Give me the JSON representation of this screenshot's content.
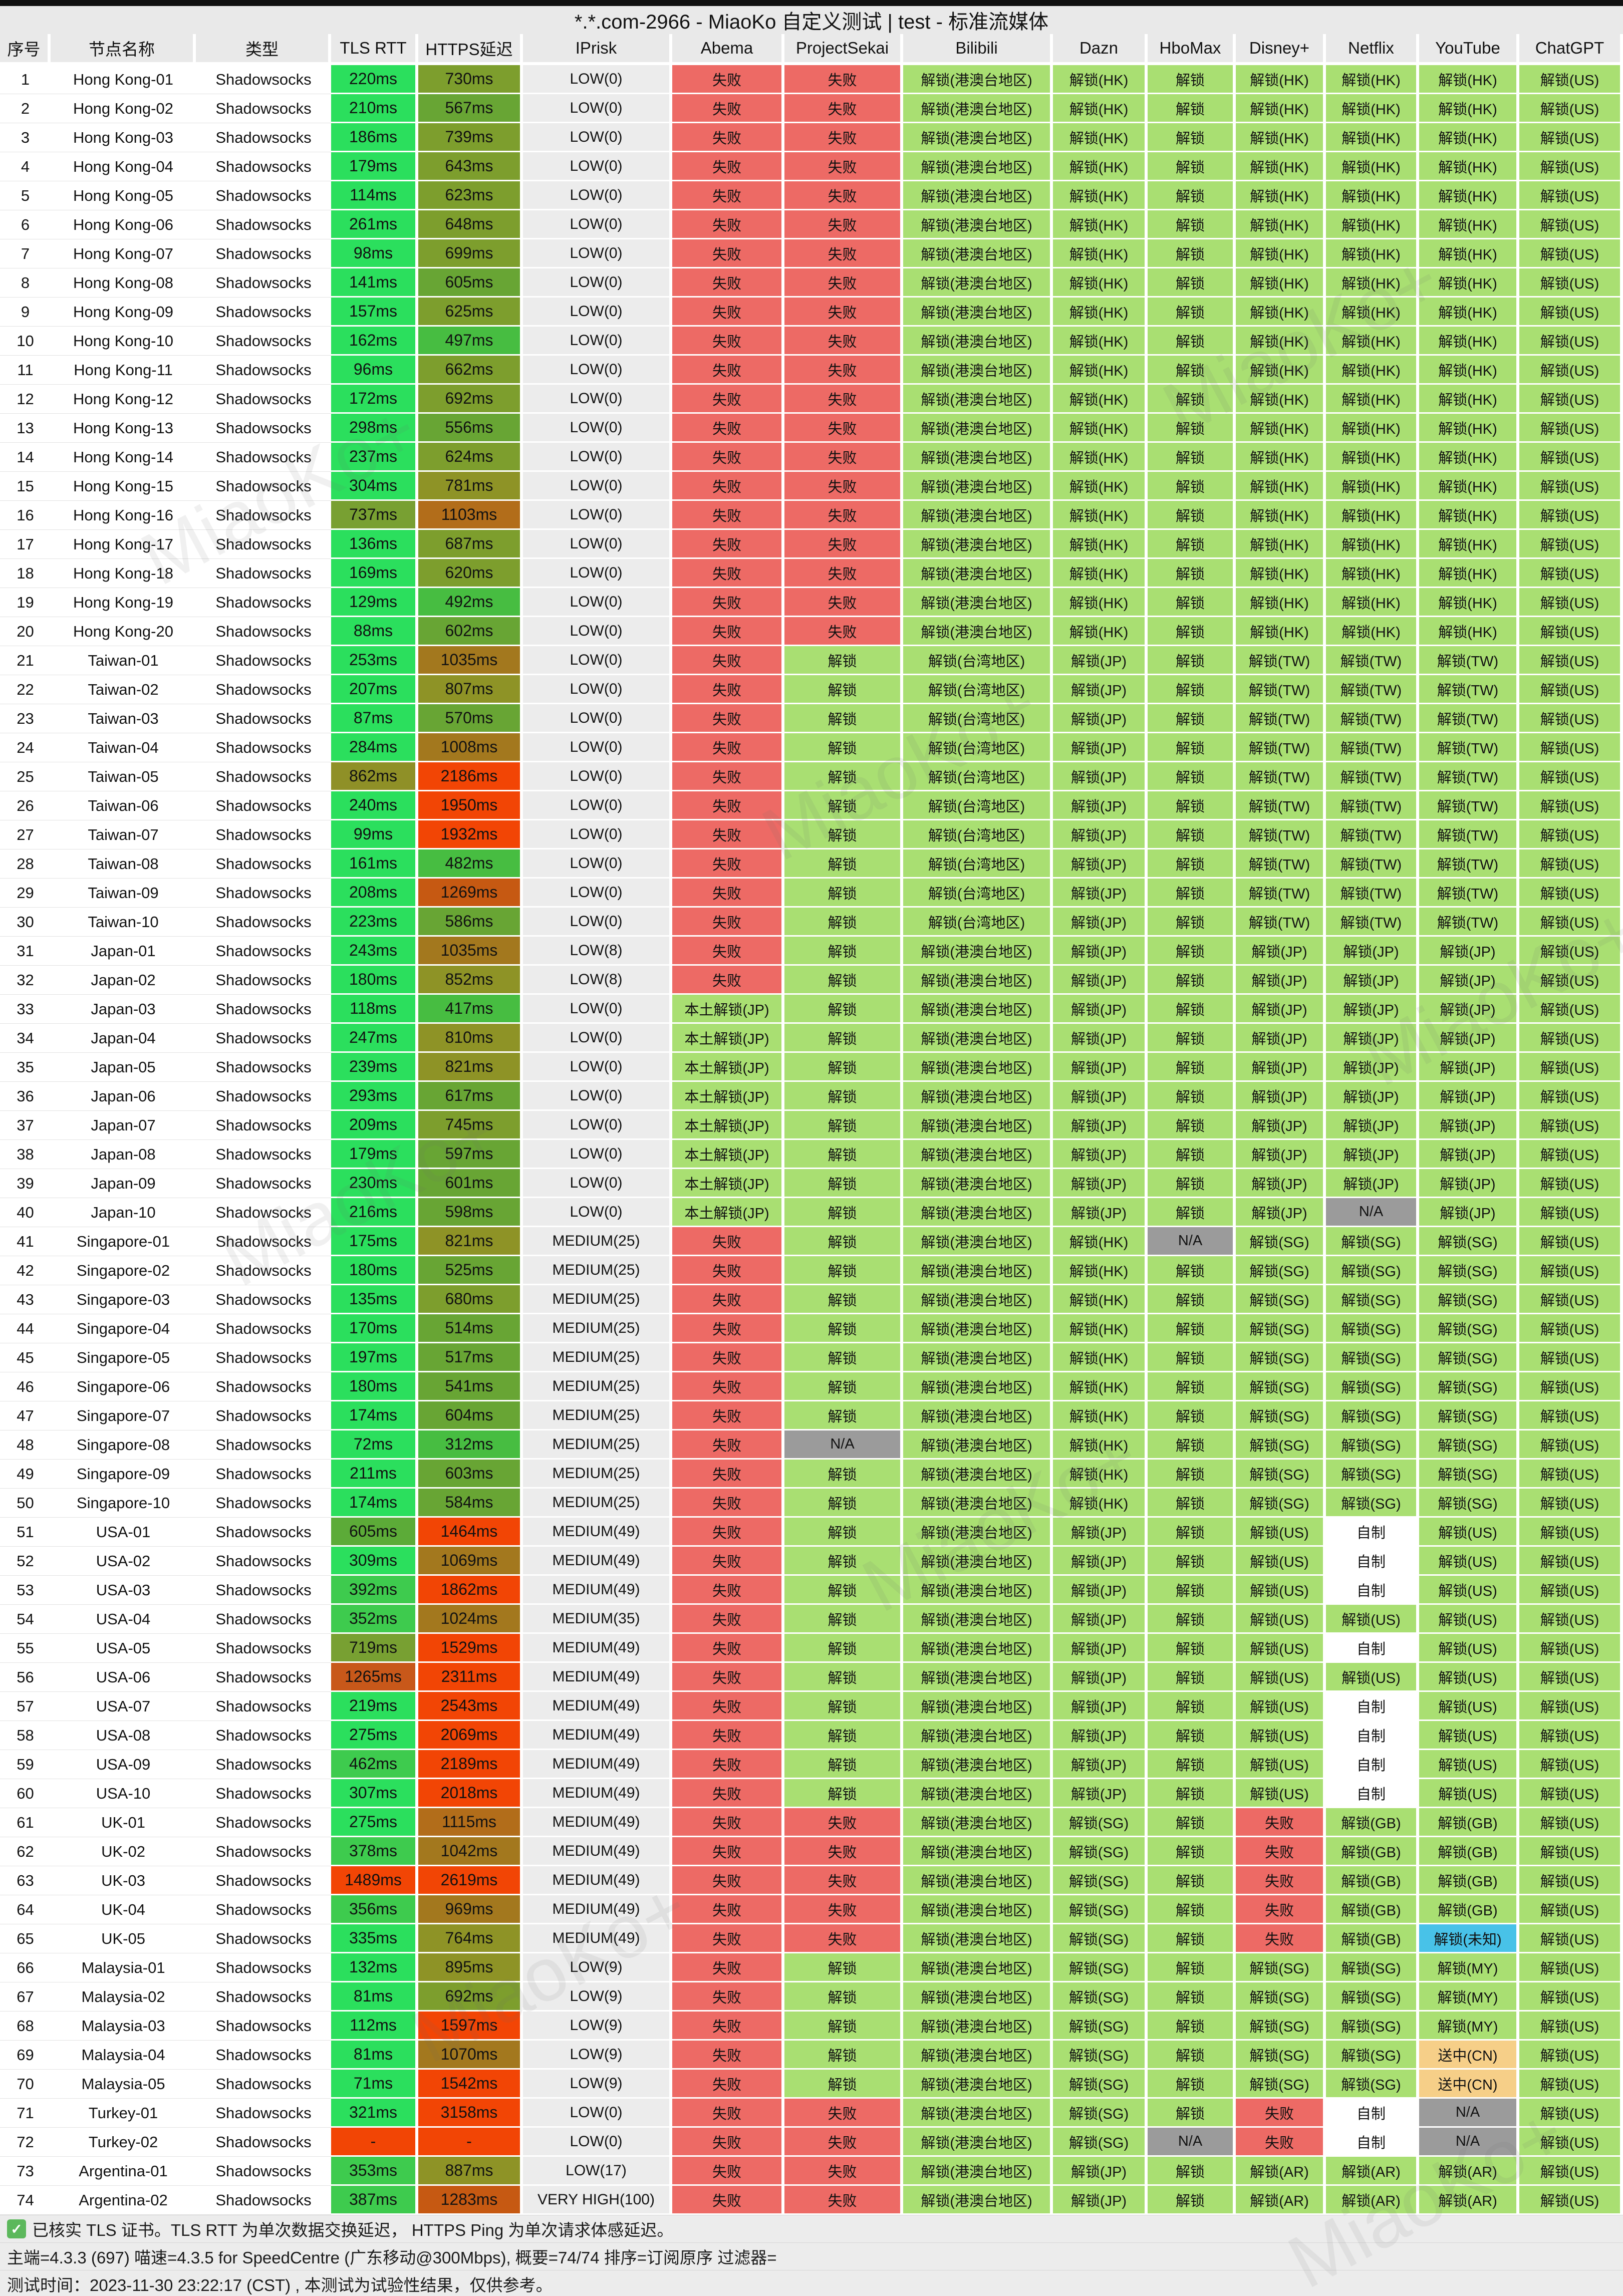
{
  "title": "*.*.com-2966 - MiaoKo 自定义测试 | test - 标准流媒体",
  "watermark": "MiaoKo+",
  "columns": [
    "序号",
    "节点名称",
    "类型",
    "TLS RTT",
    "HTTPS延迟",
    "IPrisk",
    "Abema",
    "ProjectSekai",
    "Bilibili",
    "Dazn",
    "HboMax",
    "Disney+",
    "Netflix",
    "YouTube",
    "ChatGPT"
  ],
  "footer": {
    "check_note": "已核实 TLS 证书。TLS RTT 为单次数据交换延迟， HTTPS Ping 为单次请求体感延迟。",
    "meta": "主端=4.3.3 (697) 喵速=4.3.5 for SpeedCentre (广东移动@300Mbps), 概要=74/74 排序=订阅原序 过滤器=",
    "time": "测试时间：2023-11-30 23:22:17 (CST) , 本测试为试验性结果，仅供参考。"
  },
  "palette": {
    "fail_red": "#ed6a65",
    "unlock_green": "#a9df72",
    "na_gray": "#9b9b9b",
    "originals_white": "#ffffff",
    "unknown_blue": "#48c2e8",
    "cn_redirect_tan": "#f6cf88",
    "tls_fast_green": "#2bdf5d",
    "latency_olive": "#7d9e2d",
    "latency_gold": "#a3781e",
    "latency_red": "#f24505",
    "header_gray": "#e9e9e9",
    "iprisk_gray": "#ececec"
  },
  "patterns": {
    "HK": [
      [
        "失败",
        "f"
      ],
      [
        "失败",
        "f"
      ],
      [
        "解锁(港澳台地区)",
        "u"
      ],
      [
        "解锁(HK)",
        "u"
      ],
      [
        "解锁",
        "u"
      ],
      [
        "解锁(HK)",
        "u"
      ],
      [
        "解锁(HK)",
        "u"
      ],
      [
        "解锁(HK)",
        "u"
      ],
      [
        "解锁(US)",
        "u"
      ]
    ],
    "TW": [
      [
        "失败",
        "f"
      ],
      [
        "解锁",
        "u"
      ],
      [
        "解锁(台湾地区)",
        "u"
      ],
      [
        "解锁(JP)",
        "u"
      ],
      [
        "解锁",
        "u"
      ],
      [
        "解锁(TW)",
        "u"
      ],
      [
        "解锁(TW)",
        "u"
      ],
      [
        "解锁(TW)",
        "u"
      ],
      [
        "解锁(US)",
        "u"
      ]
    ],
    "JPA": [
      [
        "失败",
        "f"
      ],
      [
        "解锁",
        "u"
      ],
      [
        "解锁(港澳台地区)",
        "u"
      ],
      [
        "解锁(JP)",
        "u"
      ],
      [
        "解锁",
        "u"
      ],
      [
        "解锁(JP)",
        "u"
      ],
      [
        "解锁(JP)",
        "u"
      ],
      [
        "解锁(JP)",
        "u"
      ],
      [
        "解锁(US)",
        "u"
      ]
    ],
    "JPB": [
      [
        "本土解锁(JP)",
        "u"
      ],
      [
        "解锁",
        "u"
      ],
      [
        "解锁(港澳台地区)",
        "u"
      ],
      [
        "解锁(JP)",
        "u"
      ],
      [
        "解锁",
        "u"
      ],
      [
        "解锁(JP)",
        "u"
      ],
      [
        "解锁(JP)",
        "u"
      ],
      [
        "解锁(JP)",
        "u"
      ],
      [
        "解锁(US)",
        "u"
      ]
    ],
    "JPC": [
      [
        "本土解锁(JP)",
        "u"
      ],
      [
        "解锁",
        "u"
      ],
      [
        "解锁(港澳台地区)",
        "u"
      ],
      [
        "解锁(JP)",
        "u"
      ],
      [
        "解锁",
        "u"
      ],
      [
        "解锁(JP)",
        "u"
      ],
      [
        "N/A",
        "na"
      ],
      [
        "解锁(JP)",
        "u"
      ],
      [
        "解锁(US)",
        "u"
      ]
    ],
    "SGA": [
      [
        "失败",
        "f"
      ],
      [
        "解锁",
        "u"
      ],
      [
        "解锁(港澳台地区)",
        "u"
      ],
      [
        "解锁(HK)",
        "u"
      ],
      [
        "N/A",
        "na"
      ],
      [
        "解锁(SG)",
        "u"
      ],
      [
        "解锁(SG)",
        "u"
      ],
      [
        "解锁(SG)",
        "u"
      ],
      [
        "解锁(US)",
        "u"
      ]
    ],
    "SG": [
      [
        "失败",
        "f"
      ],
      [
        "解锁",
        "u"
      ],
      [
        "解锁(港澳台地区)",
        "u"
      ],
      [
        "解锁(HK)",
        "u"
      ],
      [
        "解锁",
        "u"
      ],
      [
        "解锁(SG)",
        "u"
      ],
      [
        "解锁(SG)",
        "u"
      ],
      [
        "解锁(SG)",
        "u"
      ],
      [
        "解锁(US)",
        "u"
      ]
    ],
    "SGN": [
      [
        "失败",
        "f"
      ],
      [
        "N/A",
        "na"
      ],
      [
        "解锁(港澳台地区)",
        "u"
      ],
      [
        "解锁(HK)",
        "u"
      ],
      [
        "解锁",
        "u"
      ],
      [
        "解锁(SG)",
        "u"
      ],
      [
        "解锁(SG)",
        "u"
      ],
      [
        "解锁(SG)",
        "u"
      ],
      [
        "解锁(US)",
        "u"
      ]
    ],
    "USZ": [
      [
        "失败",
        "f"
      ],
      [
        "解锁",
        "u"
      ],
      [
        "解锁(港澳台地区)",
        "u"
      ],
      [
        "解锁(JP)",
        "u"
      ],
      [
        "解锁",
        "u"
      ],
      [
        "解锁(US)",
        "u"
      ],
      [
        "自制",
        "w"
      ],
      [
        "解锁(US)",
        "u"
      ],
      [
        "解锁(US)",
        "u"
      ]
    ],
    "USU": [
      [
        "失败",
        "f"
      ],
      [
        "解锁",
        "u"
      ],
      [
        "解锁(港澳台地区)",
        "u"
      ],
      [
        "解锁(JP)",
        "u"
      ],
      [
        "解锁",
        "u"
      ],
      [
        "解锁(US)",
        "u"
      ],
      [
        "解锁(US)",
        "u"
      ],
      [
        "解锁(US)",
        "u"
      ],
      [
        "解锁(US)",
        "u"
      ]
    ],
    "UK": [
      [
        "失败",
        "f"
      ],
      [
        "失败",
        "f"
      ],
      [
        "解锁(港澳台地区)",
        "u"
      ],
      [
        "解锁(SG)",
        "u"
      ],
      [
        "解锁",
        "u"
      ],
      [
        "失败",
        "f"
      ],
      [
        "解锁(GB)",
        "u"
      ],
      [
        "解锁(GB)",
        "u"
      ],
      [
        "解锁(US)",
        "u"
      ]
    ],
    "UKX": [
      [
        "失败",
        "f"
      ],
      [
        "失败",
        "f"
      ],
      [
        "解锁(港澳台地区)",
        "u"
      ],
      [
        "解锁(SG)",
        "u"
      ],
      [
        "解锁",
        "u"
      ],
      [
        "失败",
        "f"
      ],
      [
        "解锁(GB)",
        "u"
      ],
      [
        "解锁(未知)",
        "b"
      ],
      [
        "解锁(US)",
        "u"
      ]
    ],
    "MY": [
      [
        "失败",
        "f"
      ],
      [
        "解锁",
        "u"
      ],
      [
        "解锁(港澳台地区)",
        "u"
      ],
      [
        "解锁(SG)",
        "u"
      ],
      [
        "解锁",
        "u"
      ],
      [
        "解锁(SG)",
        "u"
      ],
      [
        "解锁(SG)",
        "u"
      ],
      [
        "解锁(MY)",
        "u"
      ],
      [
        "解锁(US)",
        "u"
      ]
    ],
    "MYC": [
      [
        "失败",
        "f"
      ],
      [
        "解锁",
        "u"
      ],
      [
        "解锁(港澳台地区)",
        "u"
      ],
      [
        "解锁(SG)",
        "u"
      ],
      [
        "解锁",
        "u"
      ],
      [
        "解锁(SG)",
        "u"
      ],
      [
        "解锁(SG)",
        "u"
      ],
      [
        "送中(CN)",
        "tan"
      ],
      [
        "解锁(US)",
        "u"
      ]
    ],
    "TR1": [
      [
        "失败",
        "f"
      ],
      [
        "失败",
        "f"
      ],
      [
        "解锁(港澳台地区)",
        "u"
      ],
      [
        "解锁(SG)",
        "u"
      ],
      [
        "解锁",
        "u"
      ],
      [
        "失败",
        "f"
      ],
      [
        "自制",
        "w"
      ],
      [
        "N/A",
        "na"
      ],
      [
        "解锁(US)",
        "u"
      ]
    ],
    "TR2": [
      [
        "失败",
        "f"
      ],
      [
        "失败",
        "f"
      ],
      [
        "解锁(港澳台地区)",
        "u"
      ],
      [
        "解锁(SG)",
        "u"
      ],
      [
        "N/A",
        "na"
      ],
      [
        "失败",
        "f"
      ],
      [
        "自制",
        "w"
      ],
      [
        "N/A",
        "na"
      ],
      [
        "解锁(US)",
        "u"
      ]
    ],
    "AR": [
      [
        "失败",
        "f"
      ],
      [
        "失败",
        "f"
      ],
      [
        "解锁(港澳台地区)",
        "u"
      ],
      [
        "解锁(JP)",
        "u"
      ],
      [
        "解锁",
        "u"
      ],
      [
        "解锁(AR)",
        "u"
      ],
      [
        "解锁(AR)",
        "u"
      ],
      [
        "解锁(AR)",
        "u"
      ],
      [
        "解锁(US)",
        "u"
      ]
    ]
  },
  "rows": [
    [
      1,
      "Hong Kong-01",
      "Shadowsocks",
      "220ms",
      "t0",
      "730ms",
      "h2",
      "LOW(0)",
      "HK"
    ],
    [
      2,
      "Hong Kong-02",
      "Shadowsocks",
      "210ms",
      "t0",
      "567ms",
      "h1",
      "LOW(0)",
      "HK"
    ],
    [
      3,
      "Hong Kong-03",
      "Shadowsocks",
      "186ms",
      "t0",
      "739ms",
      "h2",
      "LOW(0)",
      "HK"
    ],
    [
      4,
      "Hong Kong-04",
      "Shadowsocks",
      "179ms",
      "t0",
      "643ms",
      "h2",
      "LOW(0)",
      "HK"
    ],
    [
      5,
      "Hong Kong-05",
      "Shadowsocks",
      "114ms",
      "t0",
      "623ms",
      "h2",
      "LOW(0)",
      "HK"
    ],
    [
      6,
      "Hong Kong-06",
      "Shadowsocks",
      "261ms",
      "t0",
      "648ms",
      "h2",
      "LOW(0)",
      "HK"
    ],
    [
      7,
      "Hong Kong-07",
      "Shadowsocks",
      "98ms",
      "t0",
      "699ms",
      "h2",
      "LOW(0)",
      "HK"
    ],
    [
      8,
      "Hong Kong-08",
      "Shadowsocks",
      "141ms",
      "t0",
      "605ms",
      "h1",
      "LOW(0)",
      "HK"
    ],
    [
      9,
      "Hong Kong-09",
      "Shadowsocks",
      "157ms",
      "t0",
      "625ms",
      "h2",
      "LOW(0)",
      "HK"
    ],
    [
      10,
      "Hong Kong-10",
      "Shadowsocks",
      "162ms",
      "t0",
      "497ms",
      "h0",
      "LOW(0)",
      "HK"
    ],
    [
      11,
      "Hong Kong-11",
      "Shadowsocks",
      "96ms",
      "t0",
      "662ms",
      "h2",
      "LOW(0)",
      "HK"
    ],
    [
      12,
      "Hong Kong-12",
      "Shadowsocks",
      "172ms",
      "t0",
      "692ms",
      "h2",
      "LOW(0)",
      "HK"
    ],
    [
      13,
      "Hong Kong-13",
      "Shadowsocks",
      "298ms",
      "t0",
      "556ms",
      "h1",
      "LOW(0)",
      "HK"
    ],
    [
      14,
      "Hong Kong-14",
      "Shadowsocks",
      "237ms",
      "t0",
      "624ms",
      "h2",
      "LOW(0)",
      "HK"
    ],
    [
      15,
      "Hong Kong-15",
      "Shadowsocks",
      "304ms",
      "t0",
      "781ms",
      "h3",
      "LOW(0)",
      "HK"
    ],
    [
      16,
      "Hong Kong-16",
      "Shadowsocks",
      "737ms",
      "t3",
      "1103ms",
      "h5",
      "LOW(0)",
      "HK"
    ],
    [
      17,
      "Hong Kong-17",
      "Shadowsocks",
      "136ms",
      "t0",
      "687ms",
      "h2",
      "LOW(0)",
      "HK"
    ],
    [
      18,
      "Hong Kong-18",
      "Shadowsocks",
      "169ms",
      "t0",
      "620ms",
      "h2",
      "LOW(0)",
      "HK"
    ],
    [
      19,
      "Hong Kong-19",
      "Shadowsocks",
      "129ms",
      "t0",
      "492ms",
      "h0",
      "LOW(0)",
      "HK"
    ],
    [
      20,
      "Hong Kong-20",
      "Shadowsocks",
      "88ms",
      "t0",
      "602ms",
      "h1",
      "LOW(0)",
      "HK"
    ],
    [
      21,
      "Taiwan-01",
      "Shadowsocks",
      "253ms",
      "t0",
      "1035ms",
      "h4",
      "LOW(0)",
      "TW"
    ],
    [
      22,
      "Taiwan-02",
      "Shadowsocks",
      "207ms",
      "t0",
      "807ms",
      "h3",
      "LOW(0)",
      "TW"
    ],
    [
      23,
      "Taiwan-03",
      "Shadowsocks",
      "87ms",
      "t0",
      "570ms",
      "h1",
      "LOW(0)",
      "TW"
    ],
    [
      24,
      "Taiwan-04",
      "Shadowsocks",
      "284ms",
      "t0",
      "1008ms",
      "h4",
      "LOW(0)",
      "TW"
    ],
    [
      25,
      "Taiwan-05",
      "Shadowsocks",
      "862ms",
      "t4",
      "2186ms",
      "h7",
      "LOW(0)",
      "TW"
    ],
    [
      26,
      "Taiwan-06",
      "Shadowsocks",
      "240ms",
      "t0",
      "1950ms",
      "h7",
      "LOW(0)",
      "TW"
    ],
    [
      27,
      "Taiwan-07",
      "Shadowsocks",
      "99ms",
      "t0",
      "1932ms",
      "h7",
      "LOW(0)",
      "TW"
    ],
    [
      28,
      "Taiwan-08",
      "Shadowsocks",
      "161ms",
      "t0",
      "482ms",
      "h0",
      "LOW(0)",
      "TW"
    ],
    [
      29,
      "Taiwan-09",
      "Shadowsocks",
      "208ms",
      "t0",
      "1269ms",
      "h6",
      "LOW(0)",
      "TW"
    ],
    [
      30,
      "Taiwan-10",
      "Shadowsocks",
      "223ms",
      "t0",
      "586ms",
      "h1",
      "LOW(0)",
      "TW"
    ],
    [
      31,
      "Japan-01",
      "Shadowsocks",
      "243ms",
      "t0",
      "1035ms",
      "h4",
      "LOW(8)",
      "JPA"
    ],
    [
      32,
      "Japan-02",
      "Shadowsocks",
      "180ms",
      "t0",
      "852ms",
      "h3",
      "LOW(8)",
      "JPA"
    ],
    [
      33,
      "Japan-03",
      "Shadowsocks",
      "118ms",
      "t0",
      "417ms",
      "h0",
      "LOW(0)",
      "JPB"
    ],
    [
      34,
      "Japan-04",
      "Shadowsocks",
      "247ms",
      "t0",
      "810ms",
      "h3",
      "LOW(0)",
      "JPB"
    ],
    [
      35,
      "Japan-05",
      "Shadowsocks",
      "239ms",
      "t0",
      "821ms",
      "h3",
      "LOW(0)",
      "JPB"
    ],
    [
      36,
      "Japan-06",
      "Shadowsocks",
      "293ms",
      "t0",
      "617ms",
      "h1",
      "LOW(0)",
      "JPB"
    ],
    [
      37,
      "Japan-07",
      "Shadowsocks",
      "209ms",
      "t0",
      "745ms",
      "h2",
      "LOW(0)",
      "JPB"
    ],
    [
      38,
      "Japan-08",
      "Shadowsocks",
      "179ms",
      "t0",
      "597ms",
      "h1",
      "LOW(0)",
      "JPB"
    ],
    [
      39,
      "Japan-09",
      "Shadowsocks",
      "230ms",
      "t0",
      "601ms",
      "h1",
      "LOW(0)",
      "JPB"
    ],
    [
      40,
      "Japan-10",
      "Shadowsocks",
      "216ms",
      "t0",
      "598ms",
      "h1",
      "LOW(0)",
      "JPC"
    ],
    [
      41,
      "Singapore-01",
      "Shadowsocks",
      "175ms",
      "t0",
      "821ms",
      "h3",
      "MEDIUM(25)",
      "SGA"
    ],
    [
      42,
      "Singapore-02",
      "Shadowsocks",
      "180ms",
      "t0",
      "525ms",
      "h1",
      "MEDIUM(25)",
      "SG"
    ],
    [
      43,
      "Singapore-03",
      "Shadowsocks",
      "135ms",
      "t0",
      "680ms",
      "h2",
      "MEDIUM(25)",
      "SG"
    ],
    [
      44,
      "Singapore-04",
      "Shadowsocks",
      "170ms",
      "t0",
      "514ms",
      "h1",
      "MEDIUM(25)",
      "SG"
    ],
    [
      45,
      "Singapore-05",
      "Shadowsocks",
      "197ms",
      "t0",
      "517ms",
      "h1",
      "MEDIUM(25)",
      "SG"
    ],
    [
      46,
      "Singapore-06",
      "Shadowsocks",
      "180ms",
      "t0",
      "541ms",
      "h1",
      "MEDIUM(25)",
      "SG"
    ],
    [
      47,
      "Singapore-07",
      "Shadowsocks",
      "174ms",
      "t0",
      "604ms",
      "h1",
      "MEDIUM(25)",
      "SG"
    ],
    [
      48,
      "Singapore-08",
      "Shadowsocks",
      "72ms",
      "t0",
      "312ms",
      "h0",
      "MEDIUM(25)",
      "SGN"
    ],
    [
      49,
      "Singapore-09",
      "Shadowsocks",
      "211ms",
      "t0",
      "603ms",
      "h1",
      "MEDIUM(25)",
      "SG"
    ],
    [
      50,
      "Singapore-10",
      "Shadowsocks",
      "174ms",
      "t0",
      "584ms",
      "h1",
      "MEDIUM(25)",
      "SG"
    ],
    [
      51,
      "USA-01",
      "Shadowsocks",
      "605ms",
      "t2",
      "1464ms",
      "h7",
      "MEDIUM(49)",
      "USZ"
    ],
    [
      52,
      "USA-02",
      "Shadowsocks",
      "309ms",
      "t0",
      "1069ms",
      "h4",
      "MEDIUM(49)",
      "USZ"
    ],
    [
      53,
      "USA-03",
      "Shadowsocks",
      "392ms",
      "t1",
      "1862ms",
      "h7",
      "MEDIUM(49)",
      "USZ"
    ],
    [
      54,
      "USA-04",
      "Shadowsocks",
      "352ms",
      "t1",
      "1024ms",
      "h4",
      "MEDIUM(35)",
      "USU"
    ],
    [
      55,
      "USA-05",
      "Shadowsocks",
      "719ms",
      "t3",
      "1529ms",
      "h7",
      "MEDIUM(49)",
      "USZ"
    ],
    [
      56,
      "USA-06",
      "Shadowsocks",
      "1265ms",
      "t5",
      "2311ms",
      "h7",
      "MEDIUM(49)",
      "USU"
    ],
    [
      57,
      "USA-07",
      "Shadowsocks",
      "219ms",
      "t0",
      "2543ms",
      "h7",
      "MEDIUM(49)",
      "USZ"
    ],
    [
      58,
      "USA-08",
      "Shadowsocks",
      "275ms",
      "t0",
      "2069ms",
      "h7",
      "MEDIUM(49)",
      "USZ"
    ],
    [
      59,
      "USA-09",
      "Shadowsocks",
      "462ms",
      "t1",
      "2189ms",
      "h7",
      "MEDIUM(49)",
      "USZ"
    ],
    [
      60,
      "USA-10",
      "Shadowsocks",
      "307ms",
      "t0",
      "2018ms",
      "h7",
      "MEDIUM(49)",
      "USZ"
    ],
    [
      61,
      "UK-01",
      "Shadowsocks",
      "275ms",
      "t0",
      "1115ms",
      "h5",
      "MEDIUM(49)",
      "UK"
    ],
    [
      62,
      "UK-02",
      "Shadowsocks",
      "378ms",
      "t1",
      "1042ms",
      "h4",
      "MEDIUM(49)",
      "UK"
    ],
    [
      63,
      "UK-03",
      "Shadowsocks",
      "1489ms",
      "t6",
      "2619ms",
      "h7",
      "MEDIUM(49)",
      "UK"
    ],
    [
      64,
      "UK-04",
      "Shadowsocks",
      "356ms",
      "t1",
      "969ms",
      "h4",
      "MEDIUM(49)",
      "UK"
    ],
    [
      65,
      "UK-05",
      "Shadowsocks",
      "335ms",
      "t0",
      "764ms",
      "h3",
      "MEDIUM(49)",
      "UKX"
    ],
    [
      66,
      "Malaysia-01",
      "Shadowsocks",
      "132ms",
      "t0",
      "895ms",
      "h3",
      "LOW(9)",
      "MY"
    ],
    [
      67,
      "Malaysia-02",
      "Shadowsocks",
      "81ms",
      "t0",
      "692ms",
      "h2",
      "LOW(9)",
      "MY"
    ],
    [
      68,
      "Malaysia-03",
      "Shadowsocks",
      "112ms",
      "t0",
      "1597ms",
      "h7",
      "LOW(9)",
      "MY"
    ],
    [
      69,
      "Malaysia-04",
      "Shadowsocks",
      "81ms",
      "t0",
      "1070ms",
      "h4",
      "LOW(9)",
      "MYC"
    ],
    [
      70,
      "Malaysia-05",
      "Shadowsocks",
      "71ms",
      "t0",
      "1542ms",
      "h7",
      "LOW(9)",
      "MYC"
    ],
    [
      71,
      "Turkey-01",
      "Shadowsocks",
      "321ms",
      "t0",
      "3158ms",
      "h7",
      "LOW(0)",
      "TR1"
    ],
    [
      72,
      "Turkey-02",
      "Shadowsocks",
      "-",
      "t6",
      "-",
      "h7",
      "LOW(0)",
      "TR2"
    ],
    [
      73,
      "Argentina-01",
      "Shadowsocks",
      "353ms",
      "t1",
      "887ms",
      "h3",
      "LOW(17)",
      "AR"
    ],
    [
      74,
      "Argentina-02",
      "Shadowsocks",
      "387ms",
      "t1",
      "1283ms",
      "h6",
      "VERY HIGH(100)",
      "AR"
    ]
  ]
}
